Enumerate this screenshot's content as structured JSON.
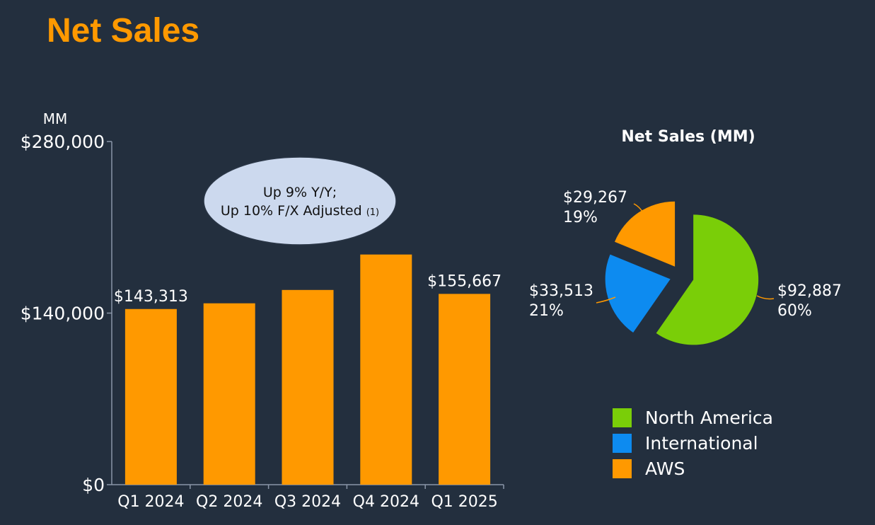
{
  "title": "Net Sales",
  "colors": {
    "bar": "#ff9900",
    "north_america": "#7ace08",
    "international": "#0d8bf0",
    "aws": "#ff9900",
    "callout_fill": "#ccd9ee",
    "axis": "#8a96a8"
  },
  "chart_data": [
    {
      "type": "bar",
      "unit_label": "MM",
      "categories": [
        "Q1 2024",
        "Q2 2024",
        "Q3 2024",
        "Q4 2024",
        "Q1 2025"
      ],
      "values": [
        143313,
        147977,
        158877,
        187792,
        155667
      ],
      "data_labels": [
        "$143,313",
        "",
        "",
        "",
        "$155,667"
      ],
      "ylim": [
        0,
        280000
      ],
      "yticks": [
        0,
        140000,
        280000
      ],
      "ytick_labels": [
        "$0",
        "$140,000",
        "$280,000"
      ],
      "grid": false,
      "annotation": {
        "line1": "Up 9% Y/Y;",
        "line2": "Up 10% F/X Adjusted",
        "footnote": "(1)"
      }
    },
    {
      "type": "pie",
      "title": "Net Sales (MM)",
      "slices": [
        {
          "name": "North America",
          "value": 92887,
          "value_label": "$92,887",
          "percent_label": "60%",
          "color": "#7ace08"
        },
        {
          "name": "International",
          "value": 33513,
          "value_label": "$33,513",
          "percent_label": "21%",
          "color": "#0d8bf0"
        },
        {
          "name": "AWS",
          "value": 29267,
          "value_label": "$29,267",
          "percent_label": "19%",
          "color": "#ff9900"
        }
      ],
      "legend_position": "bottom-right"
    }
  ]
}
